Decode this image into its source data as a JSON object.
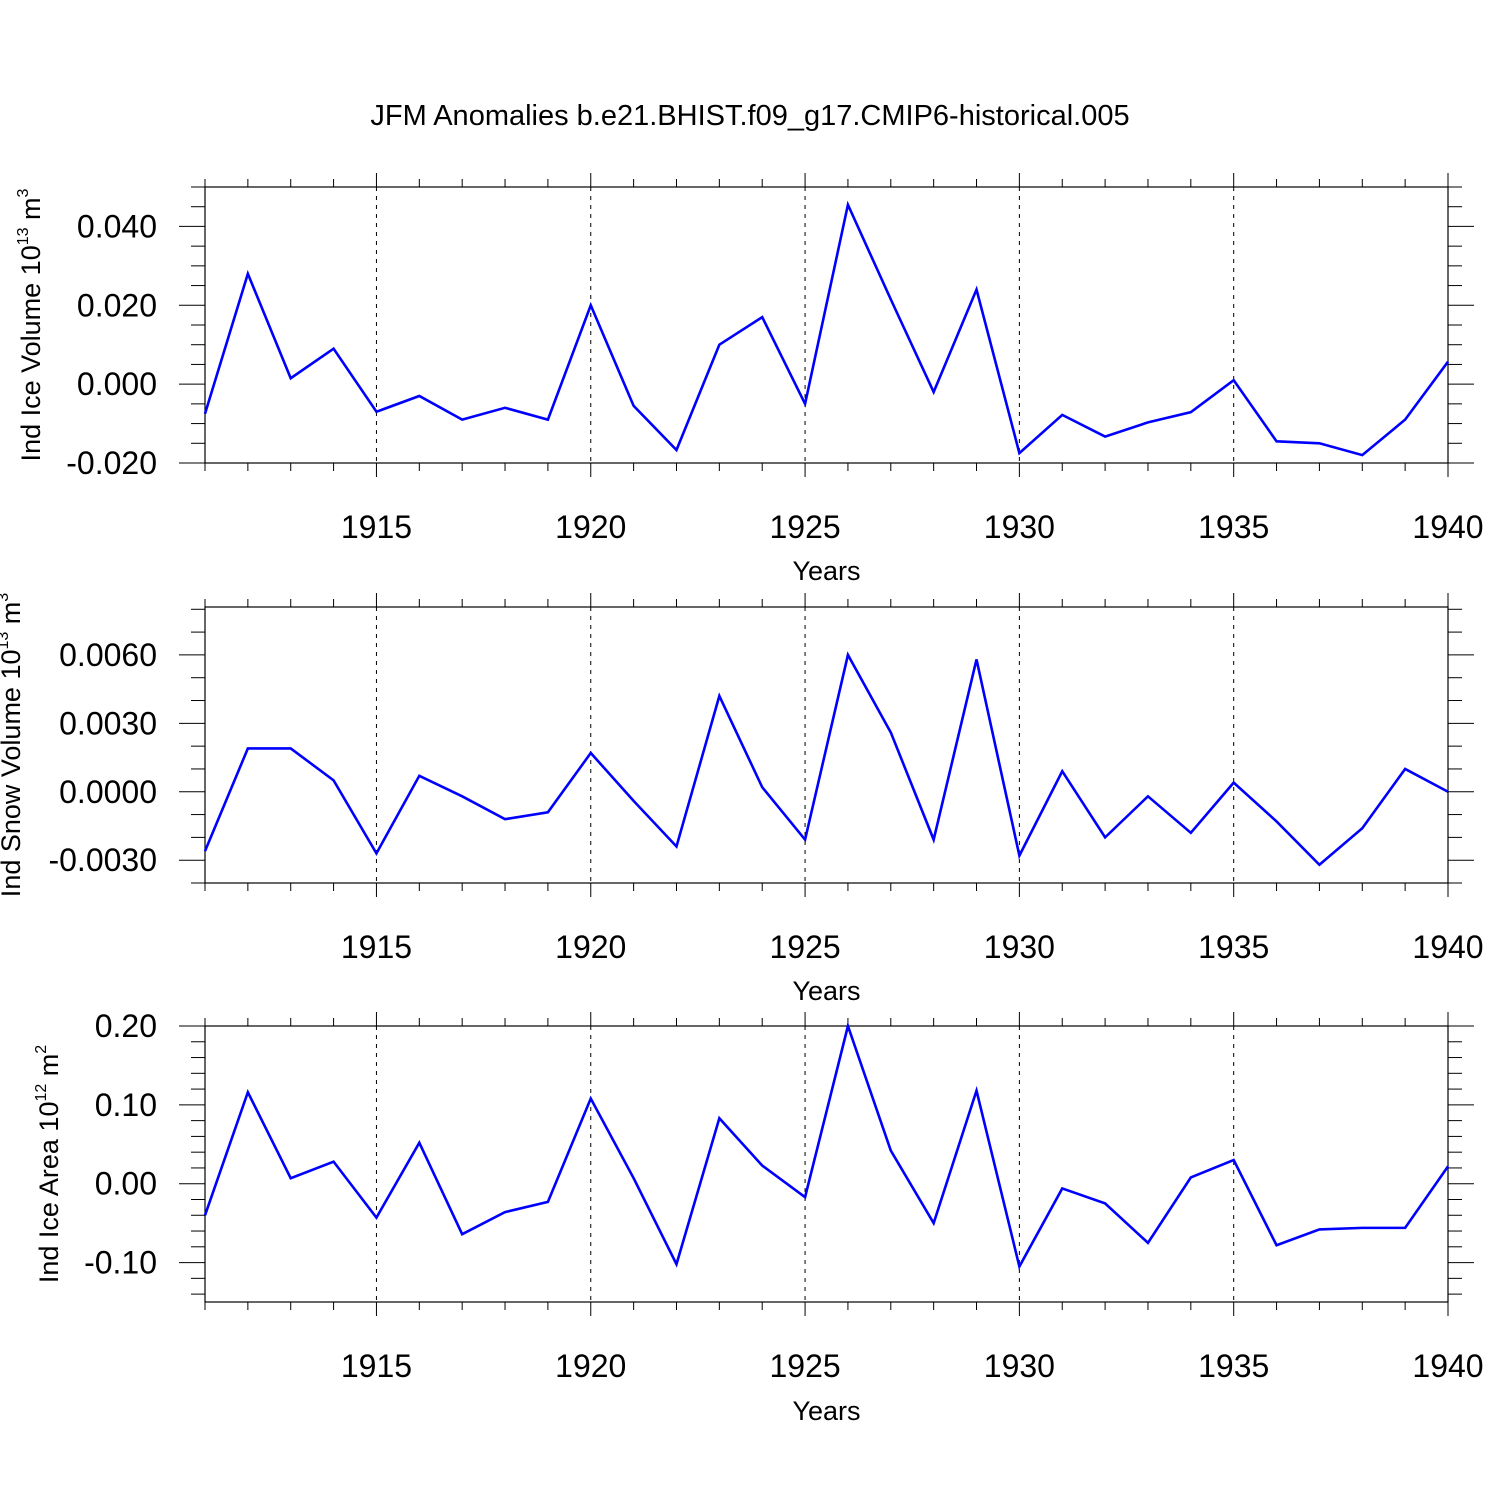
{
  "figure": {
    "title": "JFM Anomalies b.e21.BHIST.f09_g17.CMIP6-historical.005"
  },
  "colors": {
    "line": "#0000ff",
    "axis": "#000000",
    "grid": "#000000"
  },
  "chart_data": [
    {
      "type": "line",
      "xlabel": "Years",
      "ylabel": "Ind Ice Volume 10",
      "ylabel_exp": "13",
      "ylabel_unit": "m",
      "ylabel_unit_exp": "3",
      "xlim": [
        1911,
        1940
      ],
      "ylim": [
        -0.02,
        0.05
      ],
      "grid": "vertical dashed at major x ticks",
      "x_ticks": [
        1915,
        1920,
        1925,
        1930,
        1935,
        1940
      ],
      "x_tick_labels": [
        "1915",
        "1920",
        "1925",
        "1930",
        "1935",
        "1940"
      ],
      "y_ticks": [
        -0.02,
        0.0,
        0.02,
        0.04
      ],
      "y_tick_labels": [
        "-0.020",
        "0.000",
        "0.020",
        "0.040"
      ],
      "y_minor_step": 0.005,
      "x": [
        1911,
        1912,
        1913,
        1914,
        1915,
        1916,
        1917,
        1918,
        1919,
        1920,
        1921,
        1922,
        1923,
        1924,
        1925,
        1926,
        1927,
        1928,
        1929,
        1930,
        1931,
        1932,
        1933,
        1934,
        1935,
        1936,
        1937,
        1938,
        1939,
        1940
      ],
      "series": [
        {
          "values": [
            -0.0075,
            0.028,
            0.0015,
            0.009,
            -0.007,
            -0.003,
            -0.009,
            -0.006,
            -0.009,
            0.02,
            -0.0055,
            -0.0167,
            0.01,
            0.017,
            -0.005,
            0.0455,
            0.0215,
            -0.002,
            0.024,
            -0.0175,
            -0.0078,
            -0.0133,
            -0.0097,
            -0.0071,
            0.001,
            -0.0145,
            -0.015,
            -0.018,
            -0.009,
            0.0057
          ]
        }
      ]
    },
    {
      "type": "line",
      "xlabel": "Years",
      "ylabel": "Ind Snow Volume 10",
      "ylabel_exp": "13",
      "ylabel_unit": "m",
      "ylabel_unit_exp": "3",
      "xlim": [
        1911,
        1940
      ],
      "ylim": [
        -0.004,
        0.0081
      ],
      "grid": "vertical dashed at major x ticks",
      "x_ticks": [
        1915,
        1920,
        1925,
        1930,
        1935,
        1940
      ],
      "x_tick_labels": [
        "1915",
        "1920",
        "1925",
        "1930",
        "1935",
        "1940"
      ],
      "y_ticks": [
        -0.003,
        0.0,
        0.003,
        0.006
      ],
      "y_tick_labels": [
        "-0.0030",
        "0.0000",
        "0.0030",
        "0.0060"
      ],
      "y_minor_step": 0.001,
      "x": [
        1911,
        1912,
        1913,
        1914,
        1915,
        1916,
        1917,
        1918,
        1919,
        1920,
        1921,
        1922,
        1923,
        1924,
        1925,
        1926,
        1927,
        1928,
        1929,
        1930,
        1931,
        1932,
        1933,
        1934,
        1935,
        1936,
        1937,
        1938,
        1939,
        1940
      ],
      "series": [
        {
          "values": [
            -0.0026,
            0.0019,
            0.0019,
            0.0005,
            -0.0027,
            0.0007,
            -0.0002,
            -0.0012,
            -0.0009,
            0.0017,
            -0.0004,
            -0.0024,
            0.0042,
            0.0002,
            -0.0021,
            0.006,
            0.0026,
            -0.0021,
            0.0058,
            -0.0028,
            0.0009,
            -0.002,
            -0.0002,
            -0.0018,
            0.0004,
            -0.0013,
            -0.0032,
            -0.0016,
            0.001,
            0.0
          ]
        }
      ]
    },
    {
      "type": "line",
      "xlabel": "Years",
      "ylabel": "Ind Ice Area 10",
      "ylabel_exp": "12",
      "ylabel_unit": "m",
      "ylabel_unit_exp": "2",
      "xlim": [
        1911,
        1940
      ],
      "ylim": [
        -0.15,
        0.2
      ],
      "grid": "vertical dashed at major x ticks",
      "x_ticks": [
        1915,
        1920,
        1925,
        1930,
        1935,
        1940
      ],
      "x_tick_labels": [
        "1915",
        "1920",
        "1925",
        "1930",
        "1935",
        "1940"
      ],
      "y_ticks": [
        -0.1,
        0.0,
        0.1,
        0.2
      ],
      "y_tick_labels": [
        "-0.10",
        "0.00",
        "0.10",
        "0.20"
      ],
      "y_minor_step": 0.02,
      "x": [
        1911,
        1912,
        1913,
        1914,
        1915,
        1916,
        1917,
        1918,
        1919,
        1920,
        1921,
        1922,
        1923,
        1924,
        1925,
        1926,
        1927,
        1928,
        1929,
        1930,
        1931,
        1932,
        1933,
        1934,
        1935,
        1936,
        1937,
        1938,
        1939,
        1940
      ],
      "series": [
        {
          "values": [
            -0.04,
            0.116,
            0.007,
            0.028,
            -0.043,
            0.052,
            -0.064,
            -0.036,
            -0.023,
            0.108,
            0.007,
            -0.102,
            0.083,
            0.023,
            -0.017,
            0.2,
            0.042,
            -0.05,
            0.118,
            -0.105,
            -0.006,
            -0.025,
            -0.075,
            0.008,
            0.03,
            -0.078,
            -0.058,
            -0.056,
            -0.056,
            0.022
          ]
        }
      ]
    }
  ]
}
